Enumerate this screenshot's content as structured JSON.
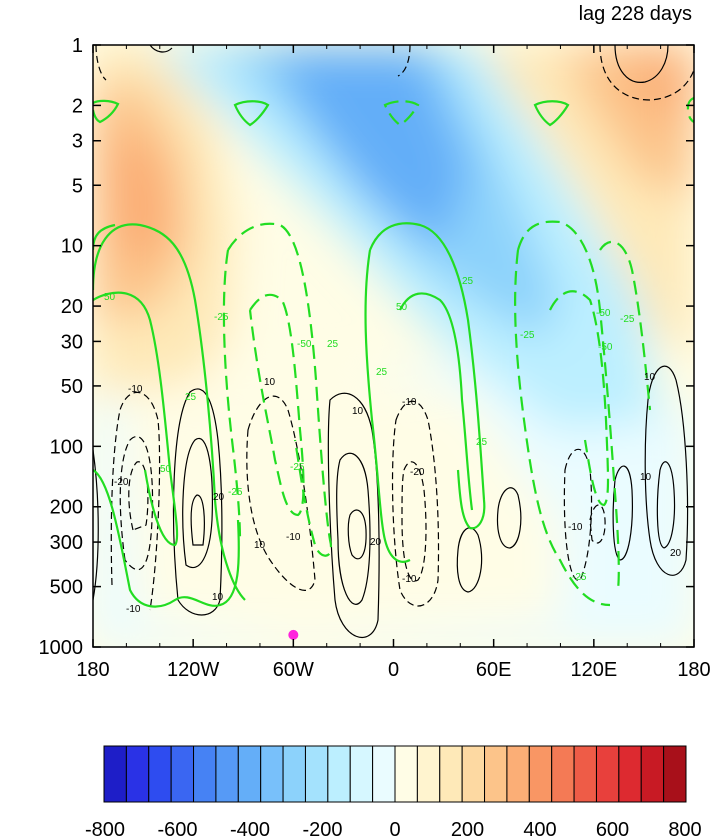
{
  "chart_data": {
    "type": "heatmap",
    "title": "lag 228 days",
    "xlabel": "",
    "ylabel": "",
    "x_axis": {
      "range": [
        -180,
        180
      ],
      "ticks": [
        -180,
        -120,
        -60,
        0,
        60,
        120,
        180
      ],
      "tick_labels": [
        "180",
        "120W",
        "60W",
        "0",
        "60E",
        "120E",
        "180"
      ]
    },
    "y_axis": {
      "scale": "log",
      "reversed": true,
      "range": [
        1,
        1000
      ],
      "ticks": [
        1,
        2,
        3,
        5,
        10,
        20,
        30,
        50,
        100,
        200,
        300,
        500,
        1000
      ],
      "tick_labels": [
        "1",
        "2",
        "3",
        "5",
        "10",
        "20",
        "30",
        "50",
        "100",
        "200",
        "300",
        "500",
        "1000"
      ]
    },
    "shading": {
      "colorbar_min": -800,
      "colorbar_max": 800,
      "colorbar_step": 50,
      "colorbar_tick_labels": [
        "-800",
        "-600",
        "-400",
        "-200",
        "0",
        "200",
        "400",
        "600",
        "800"
      ],
      "colors": [
        "#1e1ec8",
        "#2a32e6",
        "#2e4cf0",
        "#3a66f2",
        "#4682f4",
        "#569af6",
        "#64aef8",
        "#78c0fa",
        "#8cd2fb",
        "#a4e2fd",
        "#bcefff",
        "#d6f7ff",
        "#eafcff",
        "#fffde6",
        "#fff4cf",
        "#fee9b8",
        "#fdd9a2",
        "#fcc48a",
        "#fbae76",
        "#f99664",
        "#f47a55",
        "#ee5c47",
        "#e8403c",
        "#dd2a30",
        "#c81a24",
        "#a8101a"
      ],
      "bands": [
        {
          "name": "upper-positive-west",
          "value": 250,
          "x": [
            -180,
            -108
          ],
          "p": [
            1.5,
            12
          ]
        },
        {
          "name": "upper-positive-east",
          "value": 300,
          "x": [
            110,
            180
          ],
          "p": [
            1,
            8
          ]
        },
        {
          "name": "upper-negative-center",
          "value": -250,
          "x": [
            -80,
            70
          ],
          "p": [
            1,
            60
          ]
        },
        {
          "name": "lower-positive",
          "value": 50,
          "x": [
            -140,
            100
          ],
          "p": [
            60,
            900
          ]
        },
        {
          "name": "lower-negative-west",
          "value": -60,
          "x": [
            -180,
            -110
          ],
          "p": [
            80,
            1000
          ]
        },
        {
          "name": "lower-negative-east",
          "value": -50,
          "x": [
            100,
            180
          ],
          "p": [
            100,
            1000
          ]
        }
      ]
    },
    "green_contours": {
      "color": "#22dd22",
      "labels": [
        "50",
        "-25",
        "-50",
        "25",
        "-25",
        "50",
        "25",
        "-25",
        "-50",
        "25",
        "-25",
        "-50",
        "-25",
        "-25",
        "50",
        "25",
        "25"
      ]
    },
    "black_contours": {
      "color": "#000000",
      "labels": [
        "-10",
        "-20",
        "20",
        "10",
        "-10",
        "10",
        "-10",
        "10",
        "-20",
        "20",
        "-10",
        "10",
        "-10",
        "20",
        "10",
        "-10",
        "10"
      ]
    },
    "marker": {
      "color": "#ff22dd",
      "lon": -60,
      "p": 870
    }
  }
}
